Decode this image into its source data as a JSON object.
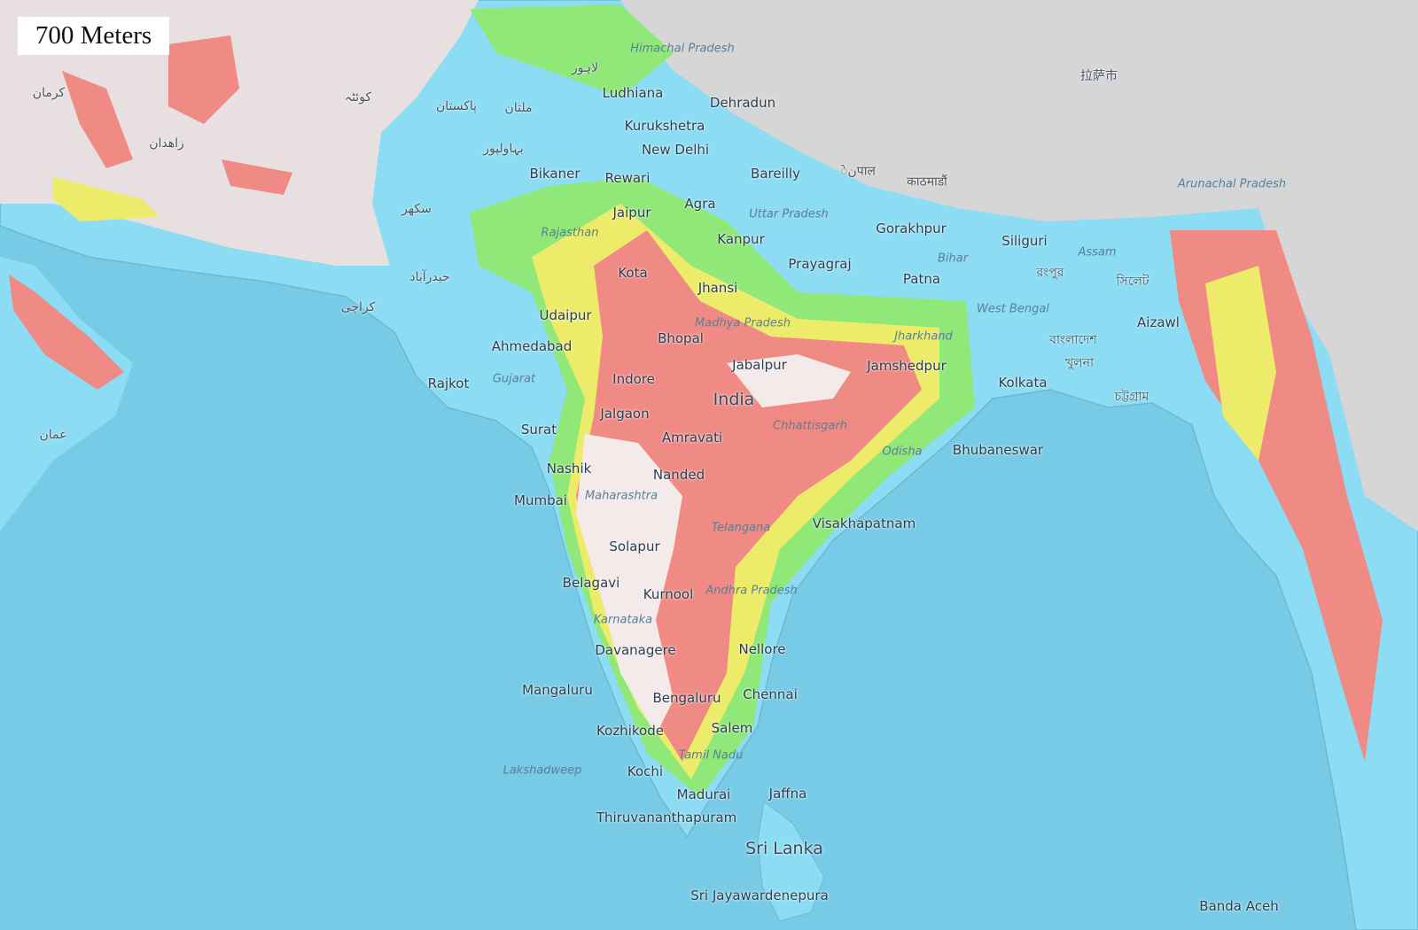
{
  "elevation_threshold": {
    "label": "700 Meters",
    "value_m": 700
  },
  "colors": {
    "ocean": "#78cbe6",
    "lowland": "#8cdcf3",
    "low_elev": "#8fe878",
    "mid_elev": "#ecec6a",
    "high_elev": "#f08a84",
    "peak": "#f4eaea",
    "terrain": "#d6d6d6"
  },
  "labels": {
    "cities": [
      "Ludhiana",
      "Kurukshetra",
      "New Delhi",
      "Dehradun",
      "Bareilly",
      "Bikaner",
      "Rewari",
      "Agra",
      "Jaipur",
      "Kanpur",
      "Gorakhpur",
      "Siliguri",
      "Prayagraj",
      "Patna",
      "Kota",
      "Jhansi",
      "Udaipur",
      "Aizawl",
      "Bhopal",
      "Ahmedabad",
      "Jabalpur",
      "Jamshedpur",
      "Kolkata",
      "Rajkot",
      "Indore",
      "Jalgaon",
      "Surat",
      "Amravati",
      "Bhubaneswar",
      "Nashik",
      "Nanded",
      "Mumbai",
      "Visakhapatnam",
      "Solapur",
      "Belagavi",
      "Kurnool",
      "Davanagere",
      "Nellore",
      "Mangaluru",
      "Chennai",
      "Bengaluru",
      "Kozhikode",
      "Salem",
      "Kochi",
      "Jaffna",
      "Madurai",
      "Thiruvananthapuram",
      "Sri Jayawardenepura",
      "Banda Aceh"
    ],
    "regions": [
      "Himachal Pradesh",
      "Uttar Pradesh",
      "Rajasthan",
      "Assam",
      "Bihar",
      "Madhya Pradesh",
      "West Bengal",
      "Jharkhand",
      "Gujarat",
      "Chhattisgarh",
      "Odisha",
      "Maharashtra",
      "Telangana",
      "Andhra Pradesh",
      "Karnataka",
      "Tamil Nadu",
      "Lakshadweep",
      "Arunachal Pradesh"
    ],
    "countries": [
      "India",
      "Sri Lanka"
    ],
    "local": [
      "لاہور",
      "ملتان",
      "پاکستان",
      "کراچی",
      "کوئٹہ",
      "زاهدان",
      "کرمان",
      "عمان",
      "بہاولپور",
      "سکھر",
      "حیدرآباد",
      "نेपाल",
      "काठमाडौं",
      "বাংলাদেশ",
      "খুলনা",
      "চট্টগ্রাম",
      "সিলেট",
      "রংপুর",
      "拉萨市"
    ]
  }
}
